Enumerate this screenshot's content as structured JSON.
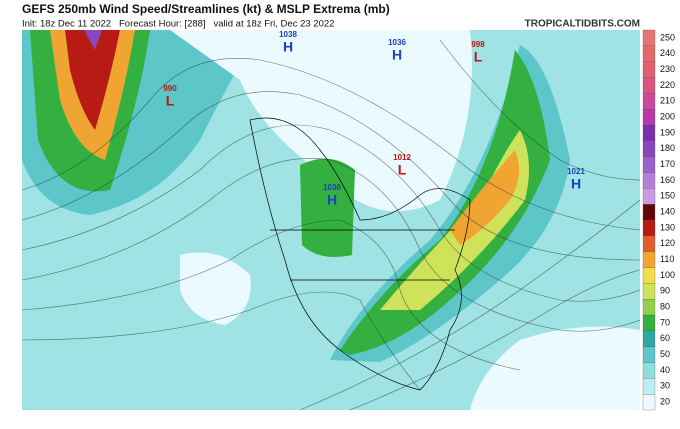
{
  "header": {
    "title": "GEFS 250mb Wind Speed/Streamlines (kt) & MSLP Extrema (mb)",
    "subtitle": "Init: 18z Dec 11 2022   Forecast Hour: [288]   valid at 18z Fri, Dec 23 2022",
    "site": "TROPICALTIDBITS.COM"
  },
  "pressure_centers": [
    {
      "value": "1038",
      "letter": "H"
    },
    {
      "value": "1036",
      "letter": "H"
    },
    {
      "value": "998",
      "letter": "L"
    },
    {
      "value": "990",
      "letter": "L"
    },
    {
      "value": "1036",
      "letter": "H"
    },
    {
      "value": "1012",
      "letter": "L"
    },
    {
      "value": "1021",
      "letter": "H"
    }
  ],
  "colorbar": {
    "ticks": [
      "20",
      "30",
      "40",
      "50",
      "60",
      "70",
      "80",
      "90",
      "100",
      "110",
      "120",
      "130",
      "140",
      "150",
      "160",
      "170",
      "180",
      "190",
      "200",
      "210",
      "220",
      "230",
      "240",
      "250"
    ],
    "colors": [
      "#eafaff",
      "#bdeff2",
      "#8fdede",
      "#5cc6c8",
      "#2fa7a5",
      "#33b040",
      "#8fd14f",
      "#cfe35a",
      "#f2dc4c",
      "#f0a432",
      "#e0602a",
      "#b81a14",
      "#600808",
      "#c89be4",
      "#b27fd9",
      "#9c62cc",
      "#8847bf",
      "#7a2fb0",
      "#b83aa8",
      "#cc4a9a",
      "#d9557f",
      "#e06070",
      "#e46a6a",
      "#e77474"
    ]
  }
}
